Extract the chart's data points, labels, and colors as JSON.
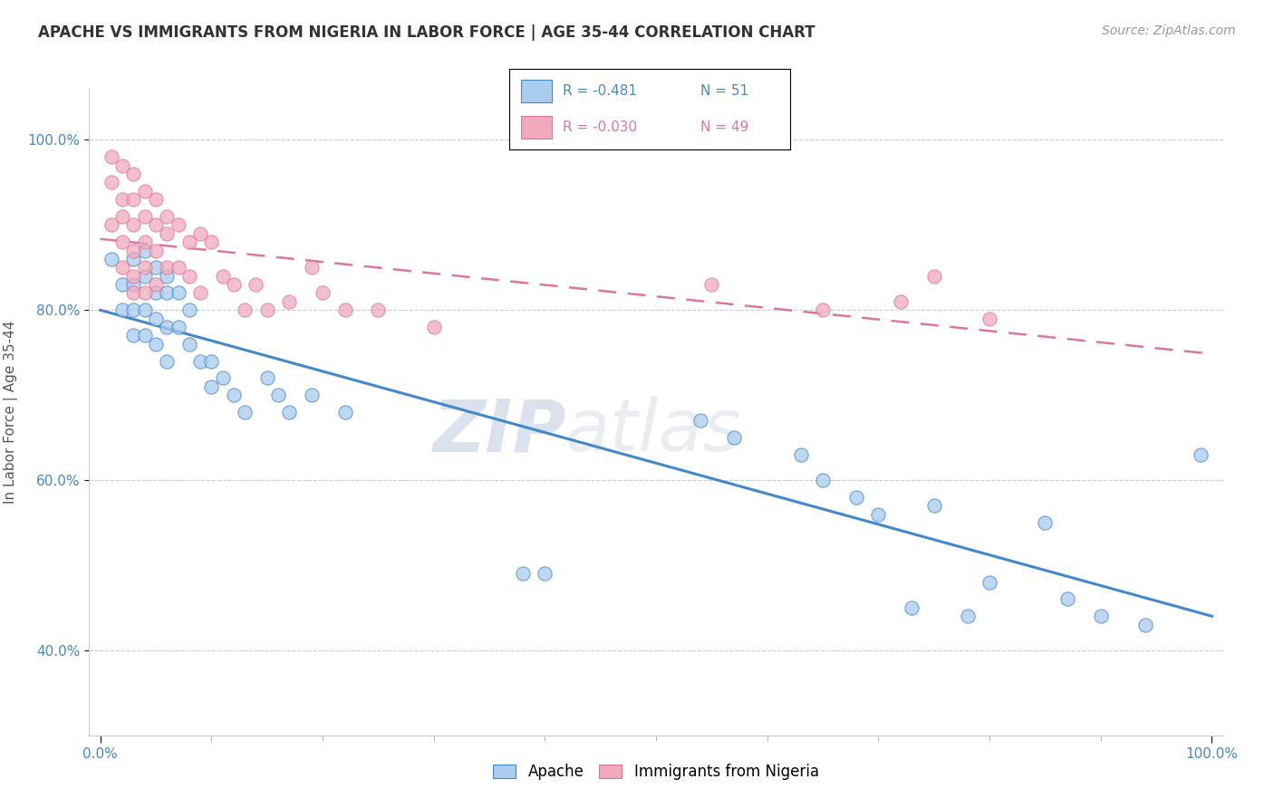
{
  "title": "APACHE VS IMMIGRANTS FROM NIGERIA IN LABOR FORCE | AGE 35-44 CORRELATION CHART",
  "source": "Source: ZipAtlas.com",
  "ylabel": "In Labor Force | Age 35-44",
  "xlim": [
    -0.01,
    1.01
  ],
  "ylim": [
    0.3,
    1.06
  ],
  "ytick_labels": [
    "40.0%",
    "60.0%",
    "80.0%",
    "100.0%"
  ],
  "ytick_values": [
    0.4,
    0.6,
    0.8,
    1.0
  ],
  "xtick_labels": [
    "0.0%",
    "100.0%"
  ],
  "xtick_values": [
    0.0,
    1.0
  ],
  "legend_r_apache": "-0.481",
  "legend_n_apache": "51",
  "legend_r_nigeria": "-0.030",
  "legend_n_nigeria": "49",
  "apache_color": "#aaccee",
  "nigeria_color": "#f0aabb",
  "apache_line_color": "#4488cc",
  "nigeria_line_color": "#dd7799",
  "watermark_zip": "ZIP",
  "watermark_atlas": "atlas",
  "apache_x": [
    0.01,
    0.02,
    0.02,
    0.03,
    0.03,
    0.03,
    0.03,
    0.04,
    0.04,
    0.04,
    0.04,
    0.05,
    0.05,
    0.05,
    0.05,
    0.06,
    0.06,
    0.06,
    0.06,
    0.07,
    0.07,
    0.08,
    0.08,
    0.09,
    0.1,
    0.1,
    0.11,
    0.12,
    0.13,
    0.15,
    0.16,
    0.17,
    0.19,
    0.22,
    0.38,
    0.4,
    0.54,
    0.57,
    0.63,
    0.65,
    0.68,
    0.7,
    0.73,
    0.75,
    0.78,
    0.8,
    0.85,
    0.87,
    0.9,
    0.94,
    0.99
  ],
  "apache_y": [
    0.86,
    0.83,
    0.8,
    0.86,
    0.83,
    0.8,
    0.77,
    0.87,
    0.84,
    0.8,
    0.77,
    0.85,
    0.82,
    0.79,
    0.76,
    0.84,
    0.82,
    0.78,
    0.74,
    0.82,
    0.78,
    0.8,
    0.76,
    0.74,
    0.74,
    0.71,
    0.72,
    0.7,
    0.68,
    0.72,
    0.7,
    0.68,
    0.7,
    0.68,
    0.49,
    0.49,
    0.67,
    0.65,
    0.63,
    0.6,
    0.58,
    0.56,
    0.45,
    0.57,
    0.44,
    0.48,
    0.55,
    0.46,
    0.44,
    0.43,
    0.63
  ],
  "nigeria_x": [
    0.01,
    0.01,
    0.01,
    0.02,
    0.02,
    0.02,
    0.02,
    0.02,
    0.03,
    0.03,
    0.03,
    0.03,
    0.03,
    0.03,
    0.04,
    0.04,
    0.04,
    0.04,
    0.04,
    0.05,
    0.05,
    0.05,
    0.05,
    0.06,
    0.06,
    0.06,
    0.07,
    0.07,
    0.08,
    0.08,
    0.09,
    0.09,
    0.1,
    0.11,
    0.12,
    0.13,
    0.14,
    0.15,
    0.17,
    0.19,
    0.2,
    0.22,
    0.25,
    0.3,
    0.55,
    0.65,
    0.72,
    0.75,
    0.8
  ],
  "nigeria_y": [
    0.98,
    0.95,
    0.9,
    0.97,
    0.93,
    0.91,
    0.88,
    0.85,
    0.96,
    0.93,
    0.9,
    0.87,
    0.84,
    0.82,
    0.94,
    0.91,
    0.88,
    0.85,
    0.82,
    0.93,
    0.9,
    0.87,
    0.83,
    0.91,
    0.89,
    0.85,
    0.9,
    0.85,
    0.88,
    0.84,
    0.89,
    0.82,
    0.88,
    0.84,
    0.83,
    0.8,
    0.83,
    0.8,
    0.81,
    0.85,
    0.82,
    0.8,
    0.8,
    0.78,
    0.83,
    0.8,
    0.81,
    0.84,
    0.79
  ]
}
